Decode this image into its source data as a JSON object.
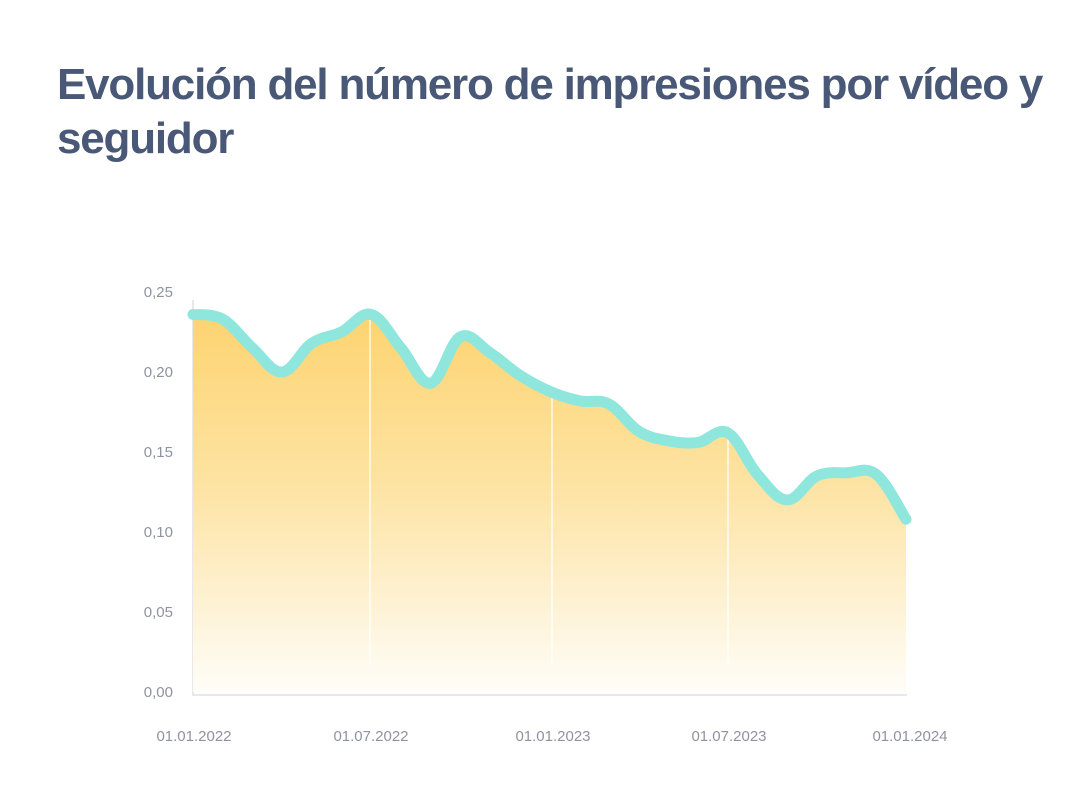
{
  "title": "Evolución del número de impresiones por vídeo y seguidor",
  "colors": {
    "title": "#4a5877",
    "line": "#8ee6dc",
    "area_top": "#fdd57a",
    "area_bottom": "#fffdf7",
    "axis": "#e6e6ea",
    "ticks": "#8e93a0"
  },
  "chart_data": {
    "type": "area",
    "title": "Evolución del número de impresiones por vídeo y seguidor",
    "xlabel": "",
    "ylabel": "",
    "ylim": [
      0,
      0.25
    ],
    "y_ticks": [
      "0,00",
      "0,05",
      "0,10",
      "0,15",
      "0,20",
      "0,25"
    ],
    "x_ticks": [
      "01.01.2022",
      "01.07.2022",
      "01.01.2023",
      "01.07.2023",
      "01.01.2024"
    ],
    "grid": "vertical lines at x ticks",
    "legend": null,
    "x": [
      "2022-01",
      "2022-02",
      "2022-03",
      "2022-04",
      "2022-05",
      "2022-06",
      "2022-07",
      "2022-08",
      "2022-09",
      "2022-10",
      "2022-11",
      "2022-12",
      "2023-01",
      "2023-02",
      "2023-03",
      "2023-04",
      "2023-05",
      "2023-06",
      "2023-07",
      "2023-08",
      "2023-09",
      "2023-10",
      "2023-11",
      "2023-12",
      "2024-01"
    ],
    "series": [
      {
        "name": "Impresiones por vídeo y seguidor",
        "values": [
          0.236,
          0.233,
          0.215,
          0.2,
          0.218,
          0.225,
          0.236,
          0.215,
          0.193,
          0.222,
          0.212,
          0.198,
          0.188,
          0.182,
          0.18,
          0.163,
          0.157,
          0.156,
          0.162,
          0.136,
          0.12,
          0.135,
          0.137,
          0.136,
          0.108
        ]
      }
    ]
  }
}
